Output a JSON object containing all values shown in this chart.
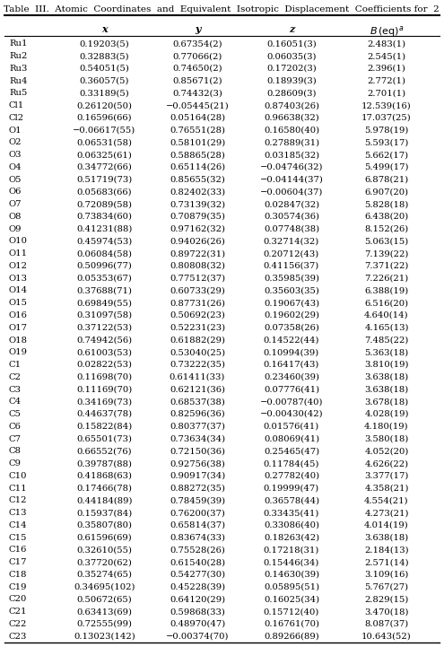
{
  "title": "Table  III.  Atomic  Coordinates  and  Equivalent  Isotropic  Displacement  Coefficients for  2",
  "rows": [
    [
      "Ru1",
      "0.19203(5)",
      "0.67354(2)",
      "0.16051(3)",
      "2.483(1)"
    ],
    [
      "Ru2",
      "0.32883(5)",
      "0.77066(2)",
      "0.06035(3)",
      "2.545(1)"
    ],
    [
      "Ru3",
      "0.54051(5)",
      "0.74650(2)",
      "0.17202(3)",
      "2.396(1)"
    ],
    [
      "Ru4",
      "0.36057(5)",
      "0.85671(2)",
      "0.18939(3)",
      "2.772(1)"
    ],
    [
      "Ru5",
      "0.33189(5)",
      "0.74432(3)",
      "0.28609(3)",
      "2.701(1)"
    ],
    [
      "Cl1",
      "0.26120(50)",
      "−0.05445(21)",
      "0.87403(26)",
      "12.539(16)"
    ],
    [
      "Cl2",
      "0.16596(66)",
      "0.05164(28)",
      "0.96638(32)",
      "17.037(25)"
    ],
    [
      "O1",
      "−0.06617(55)",
      "0.76551(28)",
      "0.16580(40)",
      "5.978(19)"
    ],
    [
      "O2",
      "0.06531(58)",
      "0.58101(29)",
      "0.27889(31)",
      "5.593(17)"
    ],
    [
      "O3",
      "0.06325(61)",
      "0.58865(28)",
      "0.03185(32)",
      "5.662(17)"
    ],
    [
      "O4",
      "0.34772(66)",
      "0.65114(26)",
      "−0.04746(32)",
      "5.499(17)"
    ],
    [
      "O5",
      "0.51719(73)",
      "0.85655(32)",
      "−0.04144(37)",
      "6.878(21)"
    ],
    [
      "O6",
      "0.05683(66)",
      "0.82402(33)",
      "−0.00604(37)",
      "6.907(20)"
    ],
    [
      "O7",
      "0.72089(58)",
      "0.73139(32)",
      "0.02847(32)",
      "5.828(18)"
    ],
    [
      "O8",
      "0.73834(60)",
      "0.70879(35)",
      "0.30574(36)",
      "6.438(20)"
    ],
    [
      "O9",
      "0.41231(88)",
      "0.97162(32)",
      "0.07748(38)",
      "8.152(26)"
    ],
    [
      "O10",
      "0.45974(53)",
      "0.94026(26)",
      "0.32714(32)",
      "5.063(15)"
    ],
    [
      "O11",
      "0.06084(58)",
      "0.89722(31)",
      "0.20712(43)",
      "7.139(22)"
    ],
    [
      "O12",
      "0.50996(77)",
      "0.80808(32)",
      "0.41156(37)",
      "7.371(22)"
    ],
    [
      "O13",
      "0.05353(67)",
      "0.77512(37)",
      "0.35985(39)",
      "7.226(21)"
    ],
    [
      "O14",
      "0.37688(71)",
      "0.60733(29)",
      "0.35603(35)",
      "6.388(19)"
    ],
    [
      "O15",
      "0.69849(55)",
      "0.87731(26)",
      "0.19067(43)",
      "6.516(20)"
    ],
    [
      "O16",
      "0.31097(58)",
      "0.50692(23)",
      "0.19602(29)",
      "4.640(14)"
    ],
    [
      "O17",
      "0.37122(53)",
      "0.52231(23)",
      "0.07358(26)",
      "4.165(13)"
    ],
    [
      "O18",
      "0.74942(56)",
      "0.61882(29)",
      "0.14522(44)",
      "7.485(22)"
    ],
    [
      "O19",
      "0.61003(53)",
      "0.53040(25)",
      "0.10994(39)",
      "5.363(18)"
    ],
    [
      "C1",
      "0.02822(53)",
      "0.73222(35)",
      "0.16417(43)",
      "3.810(19)"
    ],
    [
      "C2",
      "0.11698(70)",
      "0.61411(33)",
      "0.23460(39)",
      "3.638(18)"
    ],
    [
      "C3",
      "0.11169(70)",
      "0.62121(36)",
      "0.07776(41)",
      "3.638(18)"
    ],
    [
      "C4",
      "0.34169(73)",
      "0.68537(38)",
      "−0.00787(40)",
      "3.678(18)"
    ],
    [
      "C5",
      "0.44637(78)",
      "0.82596(36)",
      "−0.00430(42)",
      "4.028(19)"
    ],
    [
      "C6",
      "0.15822(84)",
      "0.80377(37)",
      "0.01576(41)",
      "4.180(19)"
    ],
    [
      "C7",
      "0.65501(73)",
      "0.73634(34)",
      "0.08069(41)",
      "3.580(18)"
    ],
    [
      "C8",
      "0.66552(76)",
      "0.72150(36)",
      "0.25465(47)",
      "4.052(20)"
    ],
    [
      "C9",
      "0.39787(88)",
      "0.92756(38)",
      "0.11784(45)",
      "4.626(22)"
    ],
    [
      "C10",
      "0.41868(63)",
      "0.90917(34)",
      "0.27782(40)",
      "3.377(17)"
    ],
    [
      "C11",
      "0.17466(78)",
      "0.88272(35)",
      "0.19999(47)",
      "4.358(21)"
    ],
    [
      "C12",
      "0.44184(89)",
      "0.78459(39)",
      "0.36578(44)",
      "4.554(21)"
    ],
    [
      "C13",
      "0.15937(84)",
      "0.76200(37)",
      "0.33435(41)",
      "4.273(21)"
    ],
    [
      "C14",
      "0.35807(80)",
      "0.65814(37)",
      "0.33086(40)",
      "4.014(19)"
    ],
    [
      "C15",
      "0.61596(69)",
      "0.83674(33)",
      "0.18263(42)",
      "3.638(18)"
    ],
    [
      "C16",
      "0.32610(55)",
      "0.75528(26)",
      "0.17218(31)",
      "2.184(13)"
    ],
    [
      "C17",
      "0.37720(62)",
      "0.61540(28)",
      "0.15446(34)",
      "2.571(14)"
    ],
    [
      "C18",
      "0.35274(65)",
      "0.54277(30)",
      "0.14630(39)",
      "3.109(16)"
    ],
    [
      "C19",
      "0.34695(102)",
      "0.45228(39)",
      "0.05895(51)",
      "5.767(27)"
    ],
    [
      "C20",
      "0.50672(65)",
      "0.64120(29)",
      "0.16025(34)",
      "2.829(15)"
    ],
    [
      "C21",
      "0.63413(69)",
      "0.59868(33)",
      "0.15712(40)",
      "3.470(18)"
    ],
    [
      "C22",
      "0.72555(99)",
      "0.48970(47)",
      "0.16761(70)",
      "8.087(37)"
    ],
    [
      "C23",
      "0.13023(142)",
      "−0.00374(70)",
      "0.89266(89)",
      "10.643(52)"
    ]
  ],
  "bg_color": "#ffffff",
  "title_fontsize": 7.5,
  "table_fontsize": 7.2,
  "header_fontsize": 8.0
}
